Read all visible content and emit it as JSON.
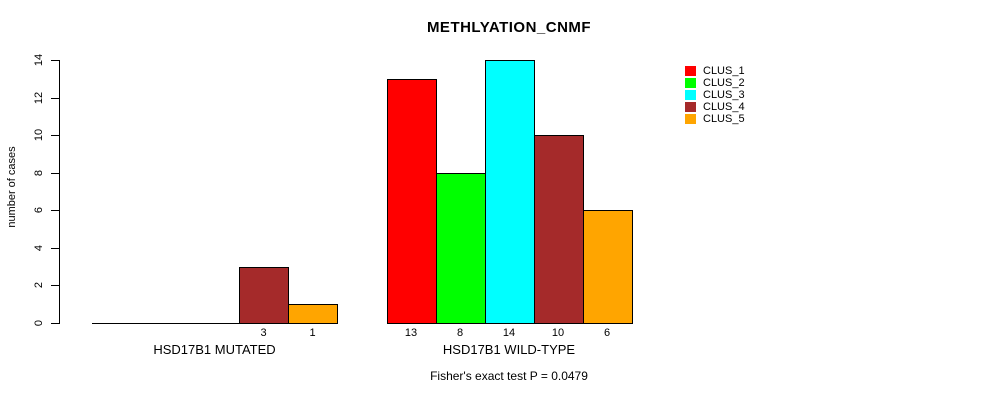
{
  "chart_data": {
    "type": "bar",
    "title": "METHLYATION_CNMF",
    "ylabel": "number of cases",
    "xlabel": "",
    "ylim": [
      0,
      14
    ],
    "yticks": [
      0,
      2,
      4,
      6,
      8,
      10,
      12,
      14
    ],
    "grid": false,
    "legend_position": "top-right",
    "series": [
      {
        "name": "CLUS_1",
        "color": "#FF0000"
      },
      {
        "name": "CLUS_2",
        "color": "#00FF00"
      },
      {
        "name": "CLUS_3",
        "color": "#00FFFF"
      },
      {
        "name": "CLUS_4",
        "color": "#A52A2A"
      },
      {
        "name": "CLUS_5",
        "color": "#FFA500"
      }
    ],
    "groups": [
      {
        "label": "HSD17B1 MUTATED",
        "values": [
          0,
          0,
          0,
          3,
          1
        ]
      },
      {
        "label": "HSD17B1 WILD-TYPE",
        "values": [
          13,
          8,
          14,
          10,
          6
        ]
      }
    ],
    "bar_value_labels": {
      "shown": true,
      "show_zero": false
    },
    "footnote": "Fisher's exact test P = 0.0479"
  }
}
